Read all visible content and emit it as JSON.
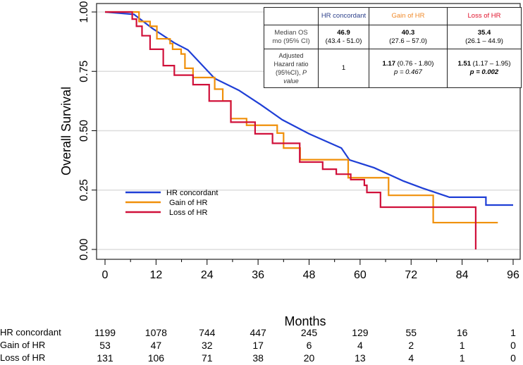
{
  "chart_data": {
    "type": "line",
    "title": "",
    "xlabel": "Months",
    "ylabel": "Overall Survival",
    "xlim": [
      0,
      96
    ],
    "ylim": [
      0,
      1
    ],
    "xticks": [
      "0",
      "12",
      "24",
      "36",
      "48",
      "60",
      "72",
      "84",
      "96"
    ],
    "yticks": [
      "0.00",
      "0.25",
      "0.50",
      "0.75",
      "1.00"
    ],
    "grid": "horizontal",
    "legend_position": "bottom-left",
    "series": [
      {
        "name": "HR concordant",
        "color": "#1f3fd6",
        "points": [
          [
            0,
            1
          ],
          [
            6.8,
            0.99
          ],
          [
            11.2,
            0.93
          ],
          [
            16.3,
            0.87
          ],
          [
            19.5,
            0.84
          ],
          [
            25.8,
            0.72
          ],
          [
            31.5,
            0.67
          ],
          [
            36.6,
            0.61
          ],
          [
            41.7,
            0.546
          ],
          [
            48,
            0.487
          ],
          [
            55.6,
            0.427
          ],
          [
            57.5,
            0.377
          ],
          [
            63.3,
            0.344
          ],
          [
            70.2,
            0.288
          ],
          [
            74.7,
            0.258
          ],
          [
            81,
            0.22
          ],
          [
            89.6,
            0.22
          ],
          [
            89.6,
            0.187
          ],
          [
            96,
            0.187
          ]
        ]
      },
      {
        "name": "Gain of HR",
        "color": "#f0900a",
        "step": true,
        "points": [
          [
            0,
            1
          ],
          [
            8,
            0.96
          ],
          [
            10.6,
            0.94
          ],
          [
            12.2,
            0.887
          ],
          [
            15.3,
            0.867
          ],
          [
            15.9,
            0.843
          ],
          [
            17.9,
            0.823
          ],
          [
            18.8,
            0.763
          ],
          [
            20.7,
            0.724
          ],
          [
            25.8,
            0.675
          ],
          [
            27.7,
            0.625
          ],
          [
            29.6,
            0.551
          ],
          [
            33.3,
            0.523
          ],
          [
            40.5,
            0.49
          ],
          [
            42,
            0.427
          ],
          [
            45.9,
            0.378
          ],
          [
            57.2,
            0.302
          ],
          [
            66.7,
            0.228
          ],
          [
            77.2,
            0.113
          ],
          [
            92.4,
            0.113
          ]
        ]
      },
      {
        "name": "Loss of HR",
        "color": "#d0103a",
        "step": true,
        "points": [
          [
            0,
            1
          ],
          [
            6.4,
            0.97
          ],
          [
            7.4,
            0.94
          ],
          [
            8.7,
            0.9
          ],
          [
            10.6,
            0.843
          ],
          [
            13.7,
            0.774
          ],
          [
            16.3,
            0.734
          ],
          [
            20.7,
            0.694
          ],
          [
            24.5,
            0.625
          ],
          [
            29.6,
            0.536
          ],
          [
            35.3,
            0.487
          ],
          [
            39.4,
            0.447
          ],
          [
            45.8,
            0.368
          ],
          [
            51.2,
            0.338
          ],
          [
            54.4,
            0.317
          ],
          [
            57.8,
            0.294
          ],
          [
            61,
            0.27
          ],
          [
            61.6,
            0.24
          ],
          [
            64.8,
            0.178
          ],
          [
            87.2,
            0
          ],
          [
            87.2,
            0
          ]
        ]
      }
    ]
  },
  "summary_table": {
    "headers": [
      "",
      "HR concordant",
      "Gain of HR",
      "Loss of HR"
    ],
    "median_label": [
      "Median OS",
      "mo (95% CI)"
    ],
    "median": [
      [
        "46.9",
        "(43.4 - 51.0)"
      ],
      [
        "40.3",
        "(27.6 – 57.0)"
      ],
      [
        "35.4",
        "(26.1 – 44.9)"
      ]
    ],
    "hr_label": [
      "Adjusted",
      "Hazard ratio",
      "(95%CI), ",
      "P",
      "value"
    ],
    "hr": [
      {
        "est": "1",
        "ci": "",
        "p": ""
      },
      {
        "est": "1.17",
        "ci": " (0.76 - 1.80)",
        "p": "p = 0.467"
      },
      {
        "est": "1.51",
        "ci": " (1.17 – 1.95)",
        "p": "p = 0.002"
      }
    ]
  },
  "risk_table": {
    "rows": [
      {
        "label": "HR concordant",
        "values": [
          "1199",
          "1078",
          "744",
          "447",
          "245",
          "129",
          "55",
          "16",
          "1"
        ]
      },
      {
        "label": "Gain of HR",
        "values": [
          "53",
          "47",
          "32",
          "17",
          "6",
          "4",
          "2",
          "1",
          "0"
        ]
      },
      {
        "label": "Loss of HR",
        "values": [
          "131",
          "106",
          "71",
          "38",
          "20",
          "13",
          "4",
          "1",
          "0"
        ]
      }
    ]
  }
}
